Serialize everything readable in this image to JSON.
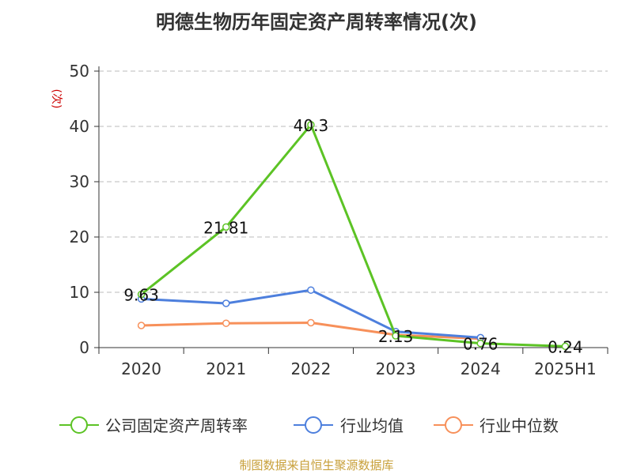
{
  "title": "明德生物历年固定资产周转率情况(次)",
  "source": "制图数据来自恒生聚源数据库",
  "chart_data": {
    "type": "line",
    "categories": [
      "2020",
      "2021",
      "2022",
      "2023",
      "2024",
      "2025H1"
    ],
    "y_unit": "(次)",
    "ylim": [
      0,
      50
    ],
    "yticks": [
      0,
      10,
      20,
      30,
      40,
      50
    ],
    "grid": true,
    "legend_position": "bottom",
    "series": [
      {
        "name": "公司固定资产周转率",
        "color": "#5cc325",
        "values": [
          9.63,
          21.81,
          40.3,
          2.13,
          0.76,
          0.24
        ],
        "labels": [
          "9.63",
          "21.81",
          "40.3",
          "2.13",
          "0.76",
          "0.24"
        ]
      },
      {
        "name": "行业均值",
        "color": "#4d7fdd",
        "values": [
          8.8,
          8.0,
          10.4,
          2.9,
          1.8,
          null
        ]
      },
      {
        "name": "行业中位数",
        "color": "#f7905a",
        "values": [
          4.0,
          4.4,
          4.5,
          2.3,
          1.6,
          null
        ]
      }
    ]
  }
}
